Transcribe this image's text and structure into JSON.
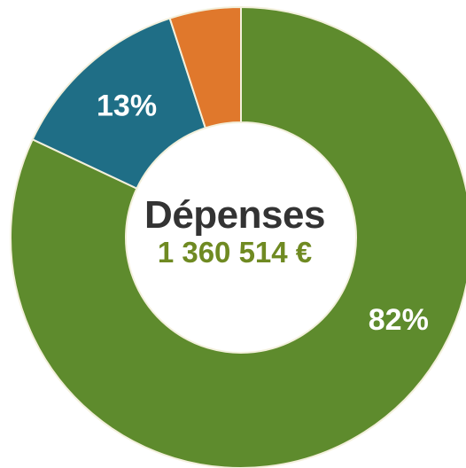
{
  "chart_data": {
    "type": "pie",
    "variant": "donut",
    "center_title": "Dépenses",
    "center_value": "1 360 514 €",
    "slices": [
      {
        "value": 82,
        "label": "82%",
        "color": "#5e8b2d"
      },
      {
        "value": 13,
        "label": "13%",
        "color": "#1f6e86"
      },
      {
        "value": 5,
        "label": "",
        "color": "#e0782c"
      }
    ],
    "start": "top",
    "direction": "clockwise",
    "legend": "none"
  },
  "colors": {
    "separator": "#f3f0dc",
    "center_value": "#6f8a22",
    "center_title": "#333333"
  }
}
